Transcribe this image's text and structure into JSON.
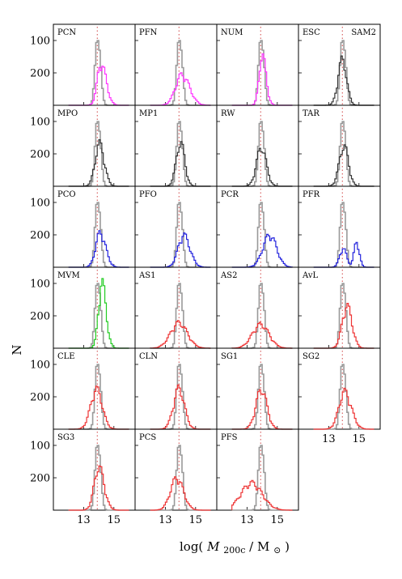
{
  "figure": {
    "ylabel": "N",
    "xlabel_math": "M",
    "xlabel_sub": "200c",
    "xlabel_unit": "M",
    "xlabel_sun": "⊙",
    "xlabel_log": "log(",
    "xlabel_slash": "/",
    "xlabel_close": ")",
    "ytick_labels": [
      "200",
      "100"
    ],
    "xtick_labels": [
      "13",
      "15"
    ]
  },
  "chart_data": {
    "type": "histogram-grid",
    "rows": 6,
    "cols": 4,
    "xlim": [
      11.0,
      16.4
    ],
    "ylim": [
      0,
      250
    ],
    "yticks": [
      100,
      200
    ],
    "xticks": [
      13,
      15
    ],
    "reference_line_x": 13.9,
    "colors": {
      "reference": "#999999",
      "magenta": "#ff33ff",
      "black": "#333333",
      "blue": "#2222dd",
      "green": "#22cc22",
      "red": "#ee3333",
      "vline": "#cc3333"
    },
    "panels": [
      {
        "label": "PCN",
        "color": "magenta",
        "mean": 14.15,
        "sigma": 0.28,
        "peak": 125,
        "skew": 0.4,
        "bimodal": false
      },
      {
        "label": "PFN",
        "color": "magenta",
        "mean": 14.1,
        "sigma": 0.45,
        "peak": 90,
        "skew": 0.2,
        "bimodal": false
      },
      {
        "label": "NUM",
        "color": "magenta",
        "mean": 14.0,
        "sigma": 0.22,
        "peak": 150,
        "skew": 0.3,
        "bimodal": false
      },
      {
        "label": "ESC",
        "label2": "SAM2",
        "color": "black",
        "mean": 13.9,
        "sigma": 0.28,
        "peak": 135,
        "skew": 0.0,
        "bimodal": false
      },
      {
        "label": "MPO",
        "color": "black",
        "mean": 14.05,
        "sigma": 0.3,
        "peak": 125,
        "skew": 0.1,
        "bimodal": false
      },
      {
        "label": "MP1",
        "color": "black",
        "mean": 14.0,
        "sigma": 0.28,
        "peak": 130,
        "skew": 0.0,
        "bimodal": false
      },
      {
        "label": "RW",
        "color": "black",
        "mean": 13.95,
        "sigma": 0.32,
        "peak": 115,
        "skew": 0.0,
        "bimodal": false
      },
      {
        "label": "TAR",
        "color": "black",
        "mean": 14.0,
        "sigma": 0.3,
        "peak": 120,
        "skew": 0.0,
        "bimodal": false
      },
      {
        "label": "PCO",
        "color": "blue",
        "mean": 14.1,
        "sigma": 0.32,
        "peak": 102,
        "skew": 0.2,
        "bimodal": false
      },
      {
        "label": "PFO",
        "color": "blue",
        "mean": 14.2,
        "sigma": 0.38,
        "peak": 95,
        "skew": 0.2,
        "bimodal": false
      },
      {
        "label": "PCR",
        "color": "blue",
        "mean": 14.5,
        "sigma": 0.45,
        "peak": 95,
        "skew": 0.0,
        "bimodal": false
      },
      {
        "label": "PFR",
        "color": "blue",
        "mean": 14.3,
        "sigma": 0.5,
        "peak": 75,
        "skew": 0.0,
        "bimodal": true
      },
      {
        "label": "MVM",
        "color": "green",
        "mean": 14.2,
        "sigma": 0.24,
        "peak": 195,
        "skew": 0.3,
        "bimodal": false
      },
      {
        "label": "AS1",
        "color": "red",
        "mean": 13.9,
        "sigma": 0.55,
        "peak": 75,
        "skew": 0.0,
        "bimodal": false
      },
      {
        "label": "AS2",
        "color": "red",
        "mean": 13.9,
        "sigma": 0.55,
        "peak": 70,
        "skew": 0.0,
        "bimodal": false
      },
      {
        "label": "AvL",
        "label2": "",
        "color": "red",
        "mean": 14.2,
        "sigma": 0.32,
        "peak": 125,
        "skew": 0.1,
        "bimodal": false
      },
      {
        "label": "CLE",
        "color": "red",
        "mean": 13.85,
        "sigma": 0.38,
        "peak": 118,
        "skew": 0.0,
        "bimodal": false
      },
      {
        "label": "CLN",
        "color": "red",
        "mean": 13.9,
        "sigma": 0.36,
        "peak": 120,
        "skew": 0.0,
        "bimodal": false
      },
      {
        "label": "SG1",
        "color": "red",
        "mean": 13.95,
        "sigma": 0.36,
        "peak": 118,
        "skew": 0.0,
        "bimodal": false
      },
      {
        "label": "SG2",
        "color": "red",
        "mean": 14.05,
        "sigma": 0.4,
        "peak": 110,
        "skew": 0.2,
        "bimodal": false
      },
      {
        "label": "SG3",
        "color": "red",
        "mean": 14.0,
        "sigma": 0.32,
        "peak": 128,
        "skew": 0.2,
        "bimodal": false
      },
      {
        "label": "PCS",
        "color": "red",
        "mean": 13.75,
        "sigma": 0.42,
        "peak": 95,
        "skew": 0.1,
        "bimodal": false
      },
      {
        "label": "PFS",
        "color": "red",
        "mean": 13.3,
        "sigma": 0.7,
        "peak": 80,
        "skew": 0.0,
        "bimodal": false
      }
    ]
  }
}
